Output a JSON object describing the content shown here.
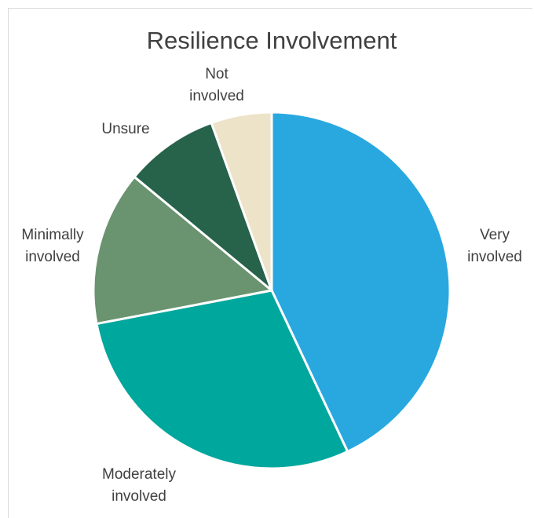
{
  "chart_data": {
    "type": "pie",
    "title": "Resilience Involvement",
    "categories": [
      "Very involved",
      "Moderately involved",
      "Minimally involved",
      "Unsure",
      "Not involved"
    ],
    "values": [
      43,
      29,
      14,
      8.5,
      5.5
    ],
    "colors": [
      "#29a8e0",
      "#00a79c",
      "#6a9370",
      "#27624a",
      "#ede3c9"
    ],
    "labels": [
      [
        "Very",
        "involved"
      ],
      [
        "Moderately",
        "involved"
      ],
      [
        "Minimally",
        "involved"
      ],
      [
        "Unsure"
      ],
      [
        "Not",
        "involved"
      ]
    ],
    "legend": "none"
  }
}
